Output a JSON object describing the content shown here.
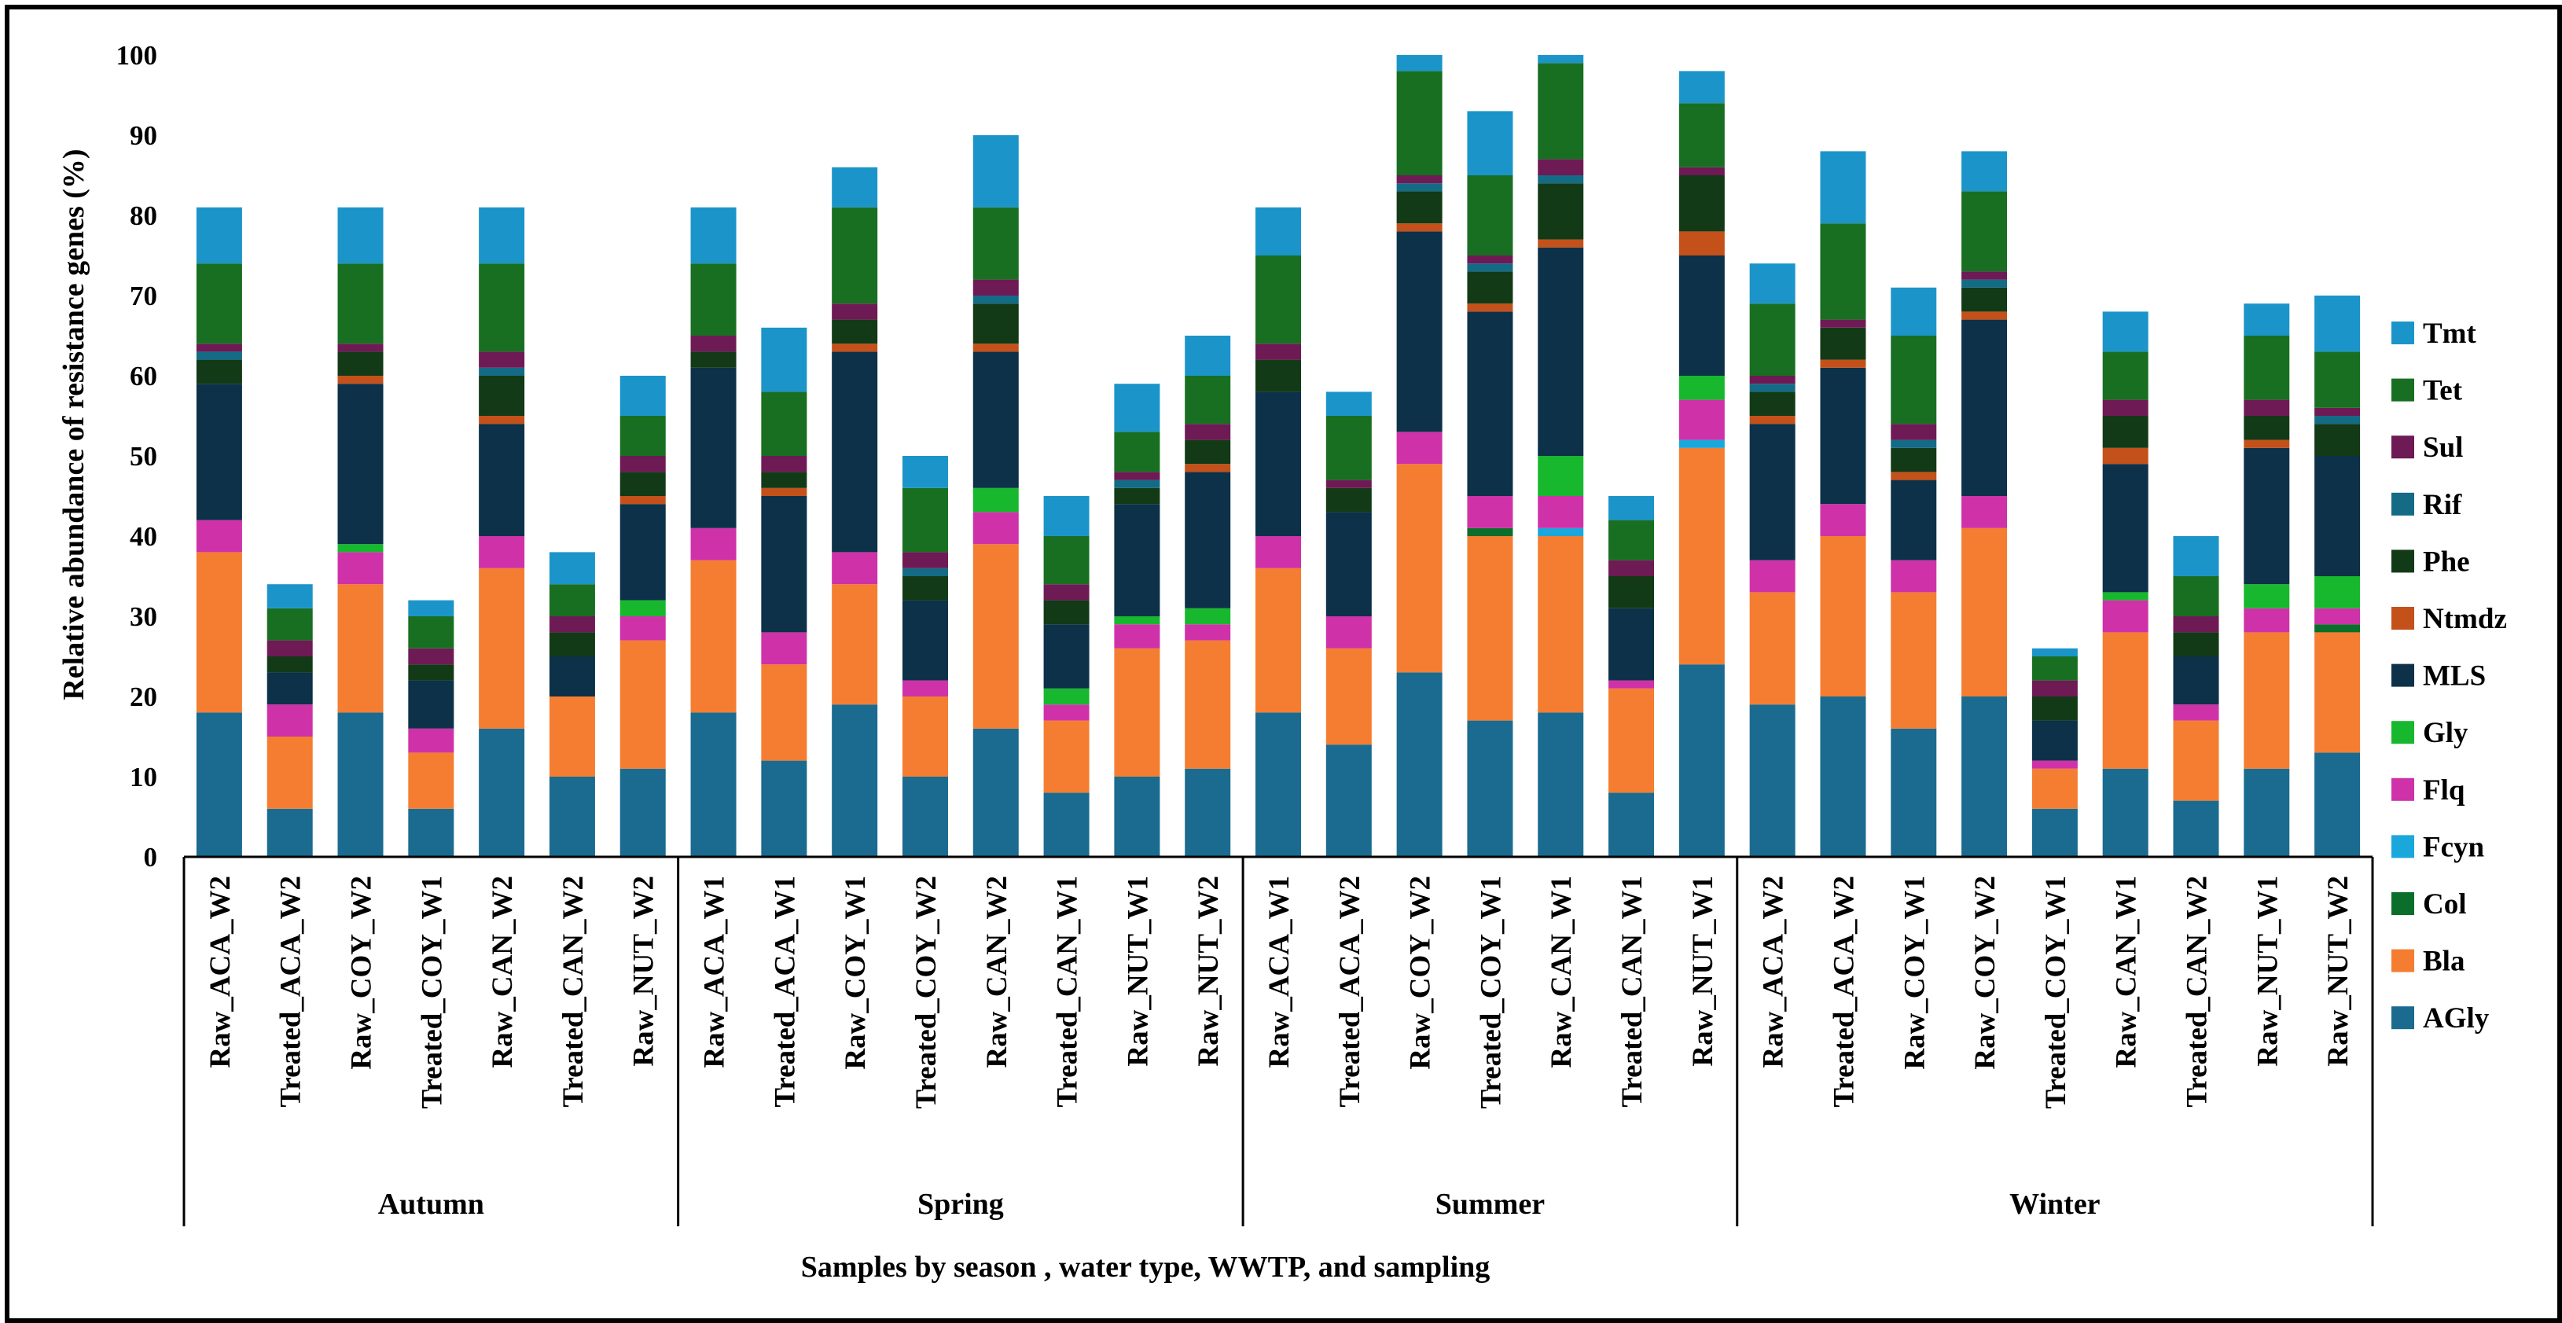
{
  "chart_data": {
    "type": "bar",
    "stacked": true,
    "title": "",
    "ylabel": "Relative abundance of resistance genes  (%)",
    "xlabel": "Samples by season , water type, WWTP,  and sampling",
    "ylim": [
      0,
      100
    ],
    "yticks": [
      0,
      10,
      20,
      30,
      40,
      50,
      60,
      70,
      80,
      90,
      100
    ],
    "grid": false,
    "legend_position": "right",
    "groups": [
      {
        "name": "Autumn",
        "categories": [
          "Raw_ACA_W2",
          "Treated_ACA_W2",
          "Raw_COY_W2",
          "Treated_COY_W1",
          "Raw_CAN_W2",
          "Treated_CAN_W2",
          "Raw_NUT_W2"
        ]
      },
      {
        "name": "Spring",
        "categories": [
          "Raw_ACA_W1",
          "Treated_ACA_W1",
          "Raw_COY_W1",
          "Treated_COY_W2",
          "Raw_CAN_W2",
          "Treated_CAN_W1",
          "Raw_NUT_W1",
          "Raw_NUT_W2"
        ]
      },
      {
        "name": "Summer",
        "categories": [
          "Raw_ACA_W1",
          "Treated_ACA_W2",
          "Raw_COY_W2",
          "Treated_COY_W1",
          "Raw_CAN_W1",
          "Treated_CAN_W1",
          "Raw_NUT_W1"
        ]
      },
      {
        "name": "Winter",
        "categories": [
          "Raw_ACA_W2",
          "Treated_ACA_W2",
          "Raw_COY_W1",
          "Raw_COY_W2",
          "Treated_COY_W1",
          "Raw_CAN_W1",
          "Treated_CAN_W2",
          "Raw_NUT_W1",
          "Raw_NUT_W2"
        ]
      }
    ],
    "series": [
      {
        "name": "AGly",
        "color": "#1a6b8f",
        "values": [
          18,
          6,
          18,
          6,
          16,
          10,
          11,
          18,
          12,
          19,
          10,
          16,
          8,
          10,
          11,
          18,
          14,
          23,
          17,
          18,
          8,
          24,
          19,
          20,
          16,
          20,
          6,
          11,
          7,
          11,
          13
        ]
      },
      {
        "name": "Bla",
        "color": "#f47d31",
        "values": [
          20,
          9,
          16,
          7,
          20,
          10,
          16,
          19,
          12,
          15,
          10,
          23,
          9,
          16,
          16,
          18,
          12,
          26,
          23,
          22,
          13,
          27,
          14,
          20,
          17,
          21,
          5,
          17,
          10,
          17,
          15
        ]
      },
      {
        "name": "Col",
        "color": "#0b6e2a",
        "values": [
          0,
          0,
          0,
          0,
          0,
          0,
          0,
          0,
          0,
          0,
          0,
          0,
          0,
          0,
          0,
          0,
          0,
          0,
          1,
          0,
          0,
          0,
          0,
          0,
          0,
          0,
          0,
          0,
          0,
          0,
          1
        ]
      },
      {
        "name": "Fcyn",
        "color": "#1aa7dc",
        "values": [
          0,
          0,
          0,
          0,
          0,
          0,
          0,
          0,
          0,
          0,
          0,
          0,
          0,
          0,
          0,
          0,
          0,
          0,
          0,
          1,
          0,
          1,
          0,
          0,
          0,
          0,
          0,
          0,
          0,
          0,
          0
        ]
      },
      {
        "name": "Flq",
        "color": "#cf32a8",
        "values": [
          4,
          4,
          4,
          3,
          4,
          0,
          3,
          4,
          4,
          4,
          2,
          4,
          2,
          3,
          2,
          4,
          4,
          4,
          4,
          4,
          1,
          5,
          4,
          4,
          4,
          4,
          1,
          4,
          2,
          3,
          2
        ]
      },
      {
        "name": "Gly",
        "color": "#17b82e",
        "values": [
          0,
          0,
          1,
          0,
          0,
          0,
          2,
          0,
          0,
          0,
          0,
          3,
          2,
          1,
          2,
          0,
          0,
          0,
          0,
          5,
          0,
          3,
          0,
          0,
          0,
          0,
          0,
          1,
          0,
          3,
          4
        ]
      },
      {
        "name": "MLS",
        "color": "#0c3148",
        "values": [
          17,
          4,
          20,
          6,
          14,
          5,
          12,
          20,
          17,
          25,
          10,
          17,
          8,
          14,
          17,
          18,
          13,
          25,
          23,
          26,
          9,
          15,
          17,
          17,
          10,
          22,
          5,
          16,
          6,
          17,
          15
        ]
      },
      {
        "name": "Ntmdz",
        "color": "#c4501a",
        "values": [
          0,
          0,
          1,
          0,
          1,
          0,
          1,
          0,
          1,
          1,
          0,
          1,
          0,
          0,
          1,
          0,
          0,
          1,
          1,
          1,
          0,
          3,
          1,
          1,
          1,
          1,
          0,
          2,
          0,
          1,
          0
        ]
      },
      {
        "name": "Phe",
        "color": "#123a16",
        "values": [
          3,
          2,
          3,
          2,
          5,
          3,
          3,
          2,
          2,
          3,
          3,
          5,
          3,
          2,
          3,
          4,
          3,
          4,
          4,
          7,
          4,
          7,
          3,
          4,
          3,
          3,
          3,
          4,
          3,
          3,
          4
        ]
      },
      {
        "name": "Rif",
        "color": "#136b86",
        "values": [
          1,
          0,
          0,
          0,
          1,
          0,
          0,
          0,
          0,
          0,
          1,
          1,
          0,
          1,
          0,
          0,
          0,
          1,
          1,
          1,
          0,
          0,
          1,
          0,
          1,
          1,
          0,
          0,
          0,
          0,
          1
        ]
      },
      {
        "name": "Sul",
        "color": "#6e1a55",
        "values": [
          1,
          2,
          1,
          2,
          2,
          2,
          2,
          2,
          2,
          2,
          2,
          2,
          2,
          1,
          2,
          2,
          1,
          1,
          1,
          2,
          2,
          1,
          1,
          1,
          2,
          1,
          2,
          2,
          2,
          2,
          1
        ]
      },
      {
        "name": "Tet",
        "color": "#186f22",
        "values": [
          10,
          4,
          10,
          4,
          11,
          4,
          5,
          9,
          8,
          12,
          8,
          9,
          6,
          5,
          6,
          11,
          8,
          13,
          10,
          12,
          5,
          8,
          9,
          12,
          11,
          10,
          3,
          6,
          5,
          8,
          7
        ]
      },
      {
        "name": "Tmt",
        "color": "#1b95c9",
        "values": [
          7,
          3,
          7,
          2,
          7,
          4,
          5,
          7,
          8,
          5,
          4,
          9,
          5,
          6,
          5,
          6,
          3,
          2,
          8,
          1,
          3,
          4,
          5,
          9,
          6,
          5,
          1,
          5,
          5,
          4,
          7
        ]
      }
    ]
  }
}
